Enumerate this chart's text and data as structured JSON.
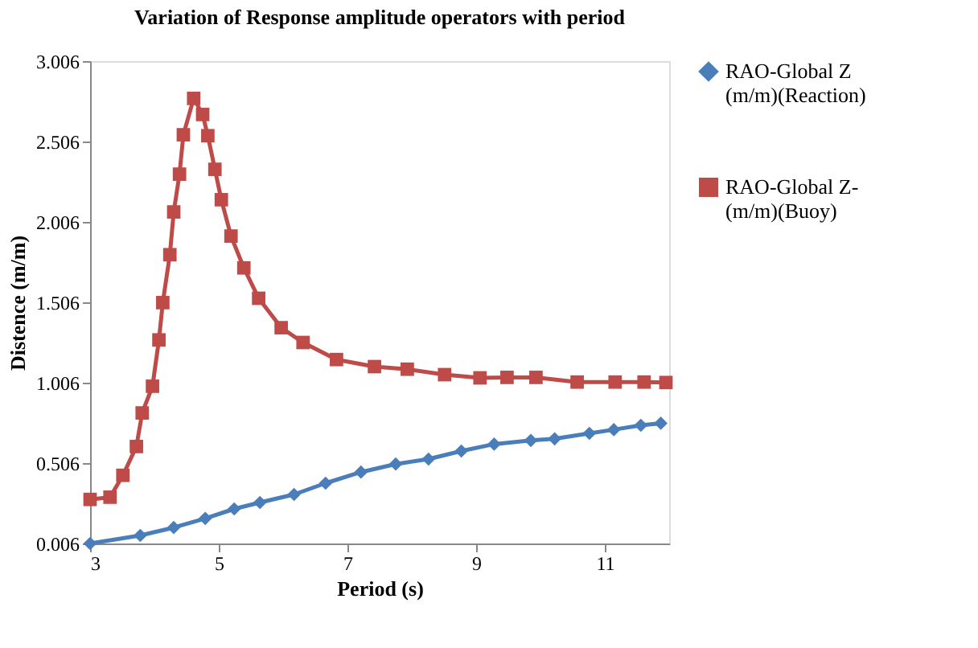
{
  "chart_data": {
    "type": "line",
    "title": "Variation of Response amplitude operators with period",
    "xlabel": "Period (s)",
    "ylabel": "Distence (m/m)",
    "xlim": [
      3,
      12
    ],
    "xticks": [
      3,
      5,
      7,
      9,
      11
    ],
    "ylim": [
      0.006,
      3.006
    ],
    "yticks": [
      0.006,
      0.506,
      1.006,
      1.506,
      2.006,
      2.506,
      3.006
    ],
    "grid": false,
    "legend": "right",
    "series": [
      {
        "name": "RAO-Global Z(m/m)(Reaction)",
        "color": "#4a7ebb",
        "marker": "diamond",
        "x": [
          3.0,
          3.78,
          4.3,
          4.79,
          5.24,
          5.64,
          6.17,
          6.66,
          7.21,
          7.75,
          8.26,
          8.77,
          9.28,
          9.85,
          10.22,
          10.76,
          11.14,
          11.56,
          11.87
        ],
        "values": [
          0.006,
          0.056,
          0.105,
          0.162,
          0.221,
          0.261,
          0.311,
          0.381,
          0.45,
          0.5,
          0.531,
          0.581,
          0.624,
          0.647,
          0.657,
          0.691,
          0.714,
          0.741,
          0.754
        ]
      },
      {
        "name": "RAO-Global Z-(m/m)(Buoy)",
        "color": "#be4b48",
        "marker": "square",
        "x": [
          3.0,
          3.31,
          3.51,
          3.72,
          3.81,
          3.97,
          4.07,
          4.13,
          4.24,
          4.3,
          4.39,
          4.45,
          4.61,
          4.75,
          4.83,
          4.94,
          5.04,
          5.19,
          5.39,
          5.62,
          5.97,
          6.31,
          6.83,
          7.42,
          7.93,
          8.51,
          9.06,
          9.48,
          9.93,
          10.57,
          11.16,
          11.61,
          11.95
        ],
        "values": [
          0.28,
          0.294,
          0.43,
          0.609,
          0.818,
          0.984,
          1.272,
          1.504,
          1.802,
          2.068,
          2.303,
          2.548,
          2.774,
          2.674,
          2.542,
          2.333,
          2.144,
          1.918,
          1.72,
          1.531,
          1.348,
          1.256,
          1.15,
          1.106,
          1.09,
          1.056,
          1.036,
          1.039,
          1.039,
          1.01,
          1.01,
          1.01,
          1.007
        ]
      }
    ]
  }
}
